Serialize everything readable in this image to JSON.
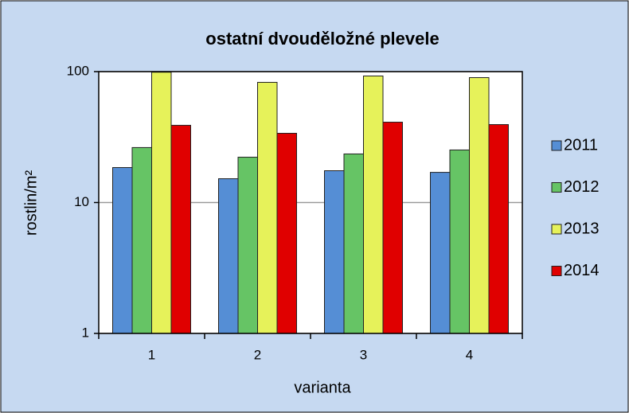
{
  "chart_data": {
    "type": "bar",
    "title": "ostatní dvouděložné plevele",
    "x_label": "varianta",
    "y_label": "rostlin/m²",
    "categories": [
      "1",
      "2",
      "3",
      "4"
    ],
    "series": [
      {
        "name": "2011",
        "color": "#558ed5",
        "values": [
          18.5,
          15.2,
          17.5,
          17.0
        ]
      },
      {
        "name": "2012",
        "color": "#66c465",
        "values": [
          26.3,
          22.2,
          23.5,
          25.2
        ]
      },
      {
        "name": "2013",
        "color": "#e6f25a",
        "values": [
          99,
          82.8,
          92.6,
          90
        ]
      },
      {
        "name": "2014",
        "color": "#e00000",
        "values": [
          38.9,
          33.8,
          41.1,
          39.4
        ]
      }
    ],
    "ylim": [
      1,
      100
    ],
    "yticks": [
      1,
      10,
      100
    ],
    "log_scale": true,
    "grid": true,
    "legend": "right"
  }
}
